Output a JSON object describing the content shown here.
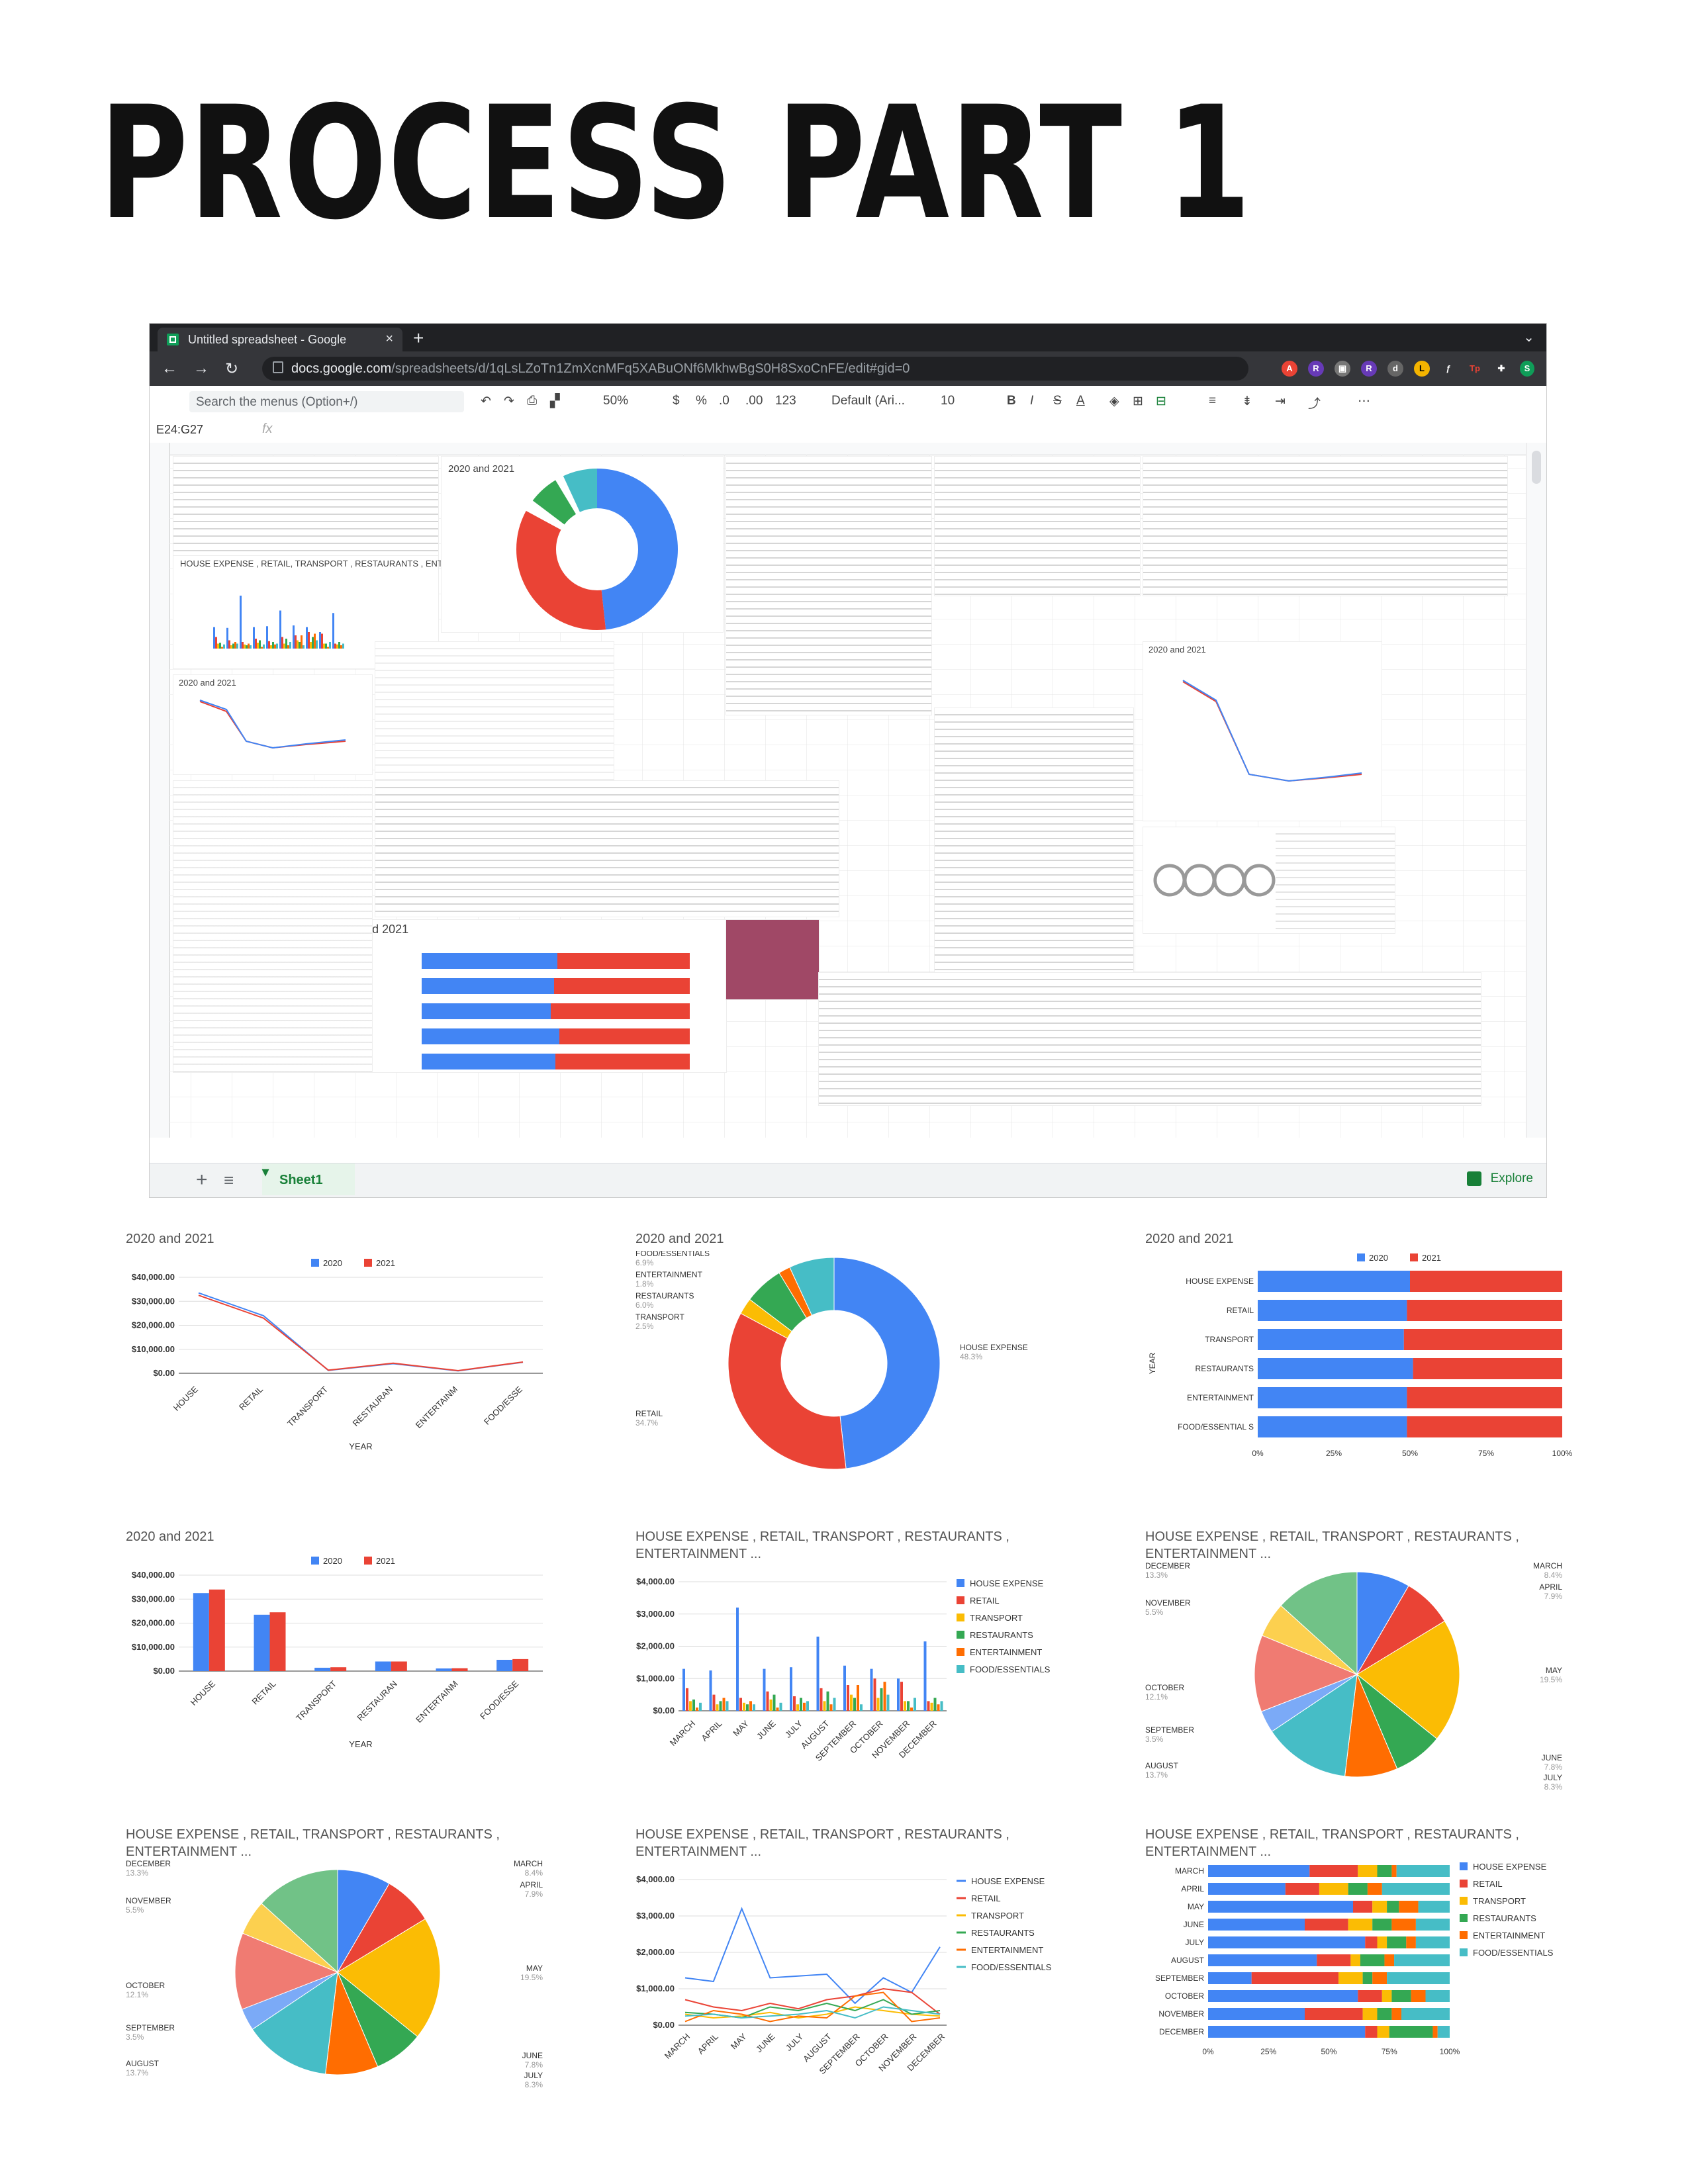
{
  "title": "PROCESS PART 1",
  "browser": {
    "tab_title": "Untitled spreadsheet - Google",
    "url_host": "docs.google.com",
    "url_path": "/spreadsheets/d/1qLsLZoTn1ZmXcnMFq5XABuONf6MkhwBgS0H8SxoCnFE/edit#gid=0",
    "search_placeholder": "Search the menus (Option+/)",
    "zoom": "50%",
    "currency": "$",
    "percent": "%",
    "dec_less": ".0",
    "dec_more": ".00",
    "num_format": "123",
    "font": "Default (Ari...",
    "font_size": "10",
    "name_box": "E24:G27",
    "fx": "fx",
    "sheet_tab": "Sheet1",
    "explore": "Explore",
    "embedded_titles": {
      "pie": "2020 and 2021",
      "bar": "HOUSE EXPENSE , RETAIL, TRANSPORT , RESTAURANTS , ENTERTAINMENT ...",
      "line": "2020 and 2021",
      "hbar": "2020 and 2021",
      "line2": "2020 and 2021"
    }
  },
  "charts": {
    "line_year": {
      "title": "2020 and 2021",
      "xlabel": "YEAR",
      "legend": [
        "2020",
        "2021"
      ]
    },
    "donut": {
      "title": "2020 and 2021",
      "labels": [
        {
          "name": "FOOD/ESSENTIALS",
          "pct": "6.9%"
        },
        {
          "name": "ENTERTAINMENT",
          "pct": "1.8%"
        },
        {
          "name": "RESTAURANTS",
          "pct": "6.0%"
        },
        {
          "name": "TRANSPORT",
          "pct": "2.5%"
        },
        {
          "name": "RETAIL",
          "pct": "34.7%"
        },
        {
          "name": "HOUSE EXPENSE",
          "pct": "48.3%"
        }
      ]
    },
    "hbar_year": {
      "title": "2020 and 2021",
      "ylabel": "YEAR",
      "legend": [
        "2020",
        "2021"
      ]
    },
    "col_year": {
      "title": "2020 and 2021",
      "xlabel": "YEAR",
      "legend": [
        "2020",
        "2021"
      ]
    },
    "col_month": {
      "title": "HOUSE EXPENSE , RETAIL, TRANSPORT , RESTAURANTS ,",
      "title2": "ENTERTAINMENT ..."
    },
    "pie_month_a": {
      "title": "HOUSE EXPENSE , RETAIL, TRANSPORT , RESTAURANTS ,",
      "title2": "ENTERTAINMENT ..."
    },
    "pie_month_b": {
      "title": "HOUSE EXPENSE , RETAIL, TRANSPORT , RESTAURANTS ,",
      "title2": "ENTERTAINMENT ..."
    },
    "line_month": {
      "title": "HOUSE EXPENSE , RETAIL, TRANSPORT , RESTAURANTS ,",
      "title2": "ENTERTAINMENT ..."
    },
    "stack_month": {
      "title": "HOUSE EXPENSE , RETAIL, TRANSPORT , RESTAURANTS ,",
      "title2": "ENTERTAINMENT ..."
    }
  },
  "chart_data": [
    {
      "type": "line",
      "title": "2020 and 2021",
      "xlabel": "YEAR",
      "categories": [
        "HOUSE",
        "RETAIL",
        "TRANSPORT",
        "RESTAURAN",
        "ENTERTAINM",
        "FOOD/ESSE"
      ],
      "yticks": [
        "$40,000.00",
        "$30,000.00",
        "$20,000.00",
        "$10,000.00",
        "$0.00"
      ],
      "ylim": [
        0,
        40000
      ],
      "series": [
        {
          "name": "2020",
          "color": "#4285f4",
          "values": [
            33500,
            24000,
            1200,
            4000,
            1000,
            4600
          ]
        },
        {
          "name": "2021",
          "color": "#ea4335",
          "values": [
            32500,
            23000,
            1300,
            4200,
            1100,
            4700
          ]
        }
      ]
    },
    {
      "type": "pie",
      "title": "2020 and 2021",
      "donut": true,
      "slices": [
        {
          "name": "HOUSE EXPENSE",
          "value": 48.3,
          "color": "#4285f4"
        },
        {
          "name": "RETAIL",
          "value": 34.7,
          "color": "#ea4335"
        },
        {
          "name": "TRANSPORT",
          "value": 2.5,
          "color": "#fbbc04"
        },
        {
          "name": "RESTAURANTS",
          "value": 6.0,
          "color": "#34a853"
        },
        {
          "name": "ENTERTAINMENT",
          "value": 1.8,
          "color": "#ff6d01"
        },
        {
          "name": "FOOD/ESSENTIALS",
          "value": 6.9,
          "color": "#46bdc6"
        }
      ]
    },
    {
      "type": "bar",
      "orientation": "horizontal-stacked-100",
      "title": "2020 and 2021",
      "ylabel": "YEAR",
      "categories": [
        "HOUSE EXPENSE",
        "RETAIL",
        "TRANSPORT",
        "RESTAURANTS",
        "ENTERTAINMENT",
        "FOOD/ESSENTIAL S"
      ],
      "xticks": [
        "0%",
        "25%",
        "50%",
        "75%",
        "100%"
      ],
      "series": [
        {
          "name": "2020",
          "color": "#4285f4",
          "values": [
            50,
            49,
            48,
            51,
            49,
            49
          ]
        },
        {
          "name": "2021",
          "color": "#ea4335",
          "values": [
            50,
            51,
            52,
            49,
            51,
            51
          ]
        }
      ]
    },
    {
      "type": "bar",
      "title": "2020 and 2021",
      "xlabel": "YEAR",
      "categories": [
        "HOUSE",
        "RETAIL",
        "TRANSPORT",
        "RESTAURAN",
        "ENTERTAINM",
        "FOOD/ESSE"
      ],
      "yticks": [
        "$40,000.00",
        "$30,000.00",
        "$20,000.00",
        "$10,000.00",
        "$0.00"
      ],
      "ylim": [
        0,
        40000
      ],
      "series": [
        {
          "name": "2020",
          "color": "#4285f4",
          "values": [
            32500,
            23500,
            1400,
            4000,
            1100,
            4700
          ]
        },
        {
          "name": "2021",
          "color": "#ea4335",
          "values": [
            34000,
            24500,
            1600,
            4000,
            1200,
            5000
          ]
        }
      ]
    },
    {
      "type": "bar",
      "title": "HOUSE EXPENSE , RETAIL, TRANSPORT , RESTAURANTS , ENTERTAINMENT ...",
      "categories": [
        "MARCH",
        "APRIL",
        "MAY",
        "JUNE",
        "JULY",
        "AUGUST",
        "SEPTEMBER",
        "OCTOBER",
        "NOVEMBER",
        "DECEMBER"
      ],
      "yticks": [
        "$4,000.00",
        "$3,000.00",
        "$2,000.00",
        "$1,000.00",
        "$0.00"
      ],
      "ylim": [
        0,
        4000
      ],
      "series": [
        {
          "name": "HOUSE EXPENSE",
          "color": "#4285f4",
          "values": [
            1300,
            1250,
            3200,
            1300,
            1350,
            2300,
            1400,
            1300,
            1000,
            2150
          ]
        },
        {
          "name": "RETAIL",
          "color": "#ea4335",
          "values": [
            700,
            500,
            400,
            600,
            450,
            700,
            800,
            1000,
            900,
            300
          ]
        },
        {
          "name": "TRANSPORT",
          "color": "#fbbc04",
          "values": [
            300,
            200,
            250,
            350,
            200,
            300,
            500,
            400,
            300,
            250
          ]
        },
        {
          "name": "RESTAURANTS",
          "color": "#34a853",
          "values": [
            350,
            300,
            200,
            500,
            400,
            600,
            400,
            700,
            300,
            400
          ]
        },
        {
          "name": "ENTERTAINMENT",
          "color": "#ff6d01",
          "values": [
            100,
            400,
            300,
            100,
            250,
            200,
            800,
            900,
            100,
            200
          ]
        },
        {
          "name": "FOOD/ESSENTIALS",
          "color": "#46bdc6",
          "values": [
            250,
            300,
            200,
            250,
            300,
            400,
            200,
            500,
            400,
            300
          ]
        }
      ]
    },
    {
      "type": "pie",
      "title": "HOUSE EXPENSE , RETAIL, TRANSPORT , RESTAURANTS , ENTERTAINMENT ...",
      "slices": [
        {
          "name": "MARCH",
          "value": 8.4,
          "pct": "8.4%",
          "color": "#4285f4"
        },
        {
          "name": "APRIL",
          "value": 7.9,
          "pct": "7.9%",
          "color": "#ea4335"
        },
        {
          "name": "MAY",
          "value": 19.5,
          "pct": "19.5%",
          "color": "#fbbc04"
        },
        {
          "name": "JUNE",
          "value": 7.8,
          "pct": "7.8%",
          "color": "#34a853"
        },
        {
          "name": "JULY",
          "value": 8.3,
          "pct": "8.3%",
          "color": "#ff6d01"
        },
        {
          "name": "AUGUST",
          "value": 13.7,
          "pct": "13.7%",
          "color": "#46bdc6"
        },
        {
          "name": "SEPTEMBER",
          "value": 3.5,
          "pct": "3.5%",
          "color": "#7baaf7"
        },
        {
          "name": "OCTOBER",
          "value": 12.1,
          "pct": "12.1%",
          "color": "#f07b72"
        },
        {
          "name": "NOVEMBER",
          "value": 5.5,
          "pct": "5.5%",
          "color": "#fcd04f"
        },
        {
          "name": "DECEMBER",
          "value": 13.3,
          "pct": "13.3%",
          "color": "#71c287"
        }
      ]
    },
    {
      "type": "line",
      "title": "HOUSE EXPENSE , RETAIL, TRANSPORT , RESTAURANTS , ENTERTAINMENT ...",
      "categories": [
        "MARCH",
        "APRIL",
        "MAY",
        "JUNE",
        "JULY",
        "AUGUST",
        "SEPTEMBER",
        "OCTOBER",
        "NOVEMBER",
        "DECEMBER"
      ],
      "yticks": [
        "$4,000.00",
        "$3,000.00",
        "$2,000.00",
        "$1,000.00",
        "$0.00"
      ],
      "ylim": [
        0,
        4000
      ],
      "series": [
        {
          "name": "HOUSE EXPENSE",
          "color": "#4285f4",
          "values": [
            1300,
            1200,
            3200,
            1300,
            1350,
            1400,
            600,
            1300,
            900,
            2150
          ]
        },
        {
          "name": "RETAIL",
          "color": "#ea4335",
          "values": [
            700,
            500,
            400,
            600,
            450,
            700,
            800,
            1000,
            900,
            300
          ]
        },
        {
          "name": "TRANSPORT",
          "color": "#fbbc04",
          "values": [
            300,
            200,
            250,
            350,
            200,
            300,
            500,
            400,
            300,
            250
          ]
        },
        {
          "name": "RESTAURANTS",
          "color": "#34a853",
          "values": [
            350,
            300,
            200,
            500,
            400,
            600,
            400,
            700,
            300,
            400
          ]
        },
        {
          "name": "ENTERTAINMENT",
          "color": "#ff6d01",
          "values": [
            100,
            400,
            300,
            100,
            250,
            200,
            800,
            900,
            100,
            200
          ]
        },
        {
          "name": "FOOD/ESSENTIALS",
          "color": "#46bdc6",
          "values": [
            250,
            300,
            200,
            250,
            300,
            400,
            200,
            500,
            400,
            300
          ]
        }
      ]
    },
    {
      "type": "bar",
      "orientation": "horizontal-stacked-100",
      "title": "HOUSE EXPENSE , RETAIL, TRANSPORT , RESTAURANTS , ENTERTAINMENT ...",
      "categories": [
        "MARCH",
        "APRIL",
        "MAY",
        "JUNE",
        "JULY",
        "AUGUST",
        "SEPTEMBER",
        "OCTOBER",
        "NOVEMBER",
        "DECEMBER"
      ],
      "xticks": [
        "0%",
        "25%",
        "50%",
        "75%",
        "100%"
      ],
      "series": [
        {
          "name": "HOUSE EXPENSE",
          "color": "#4285f4",
          "values": [
            42,
            32,
            60,
            40,
            65,
            45,
            18,
            62,
            40,
            65
          ]
        },
        {
          "name": "RETAIL",
          "color": "#ea4335",
          "values": [
            20,
            14,
            8,
            18,
            5,
            14,
            36,
            10,
            24,
            5
          ]
        },
        {
          "name": "TRANSPORT",
          "color": "#fbbc04",
          "values": [
            8,
            12,
            6,
            10,
            4,
            4,
            10,
            4,
            6,
            5
          ]
        },
        {
          "name": "RESTAURANTS",
          "color": "#34a853",
          "values": [
            6,
            8,
            5,
            8,
            8,
            10,
            4,
            8,
            6,
            18
          ]
        },
        {
          "name": "ENTERTAINMENT",
          "color": "#ff6d01",
          "values": [
            2,
            6,
            8,
            10,
            4,
            4,
            6,
            6,
            4,
            2
          ]
        },
        {
          "name": "FOOD/ESSENTIALS",
          "color": "#46bdc6",
          "values": [
            22,
            28,
            13,
            14,
            14,
            23,
            26,
            10,
            20,
            5
          ]
        }
      ]
    }
  ]
}
